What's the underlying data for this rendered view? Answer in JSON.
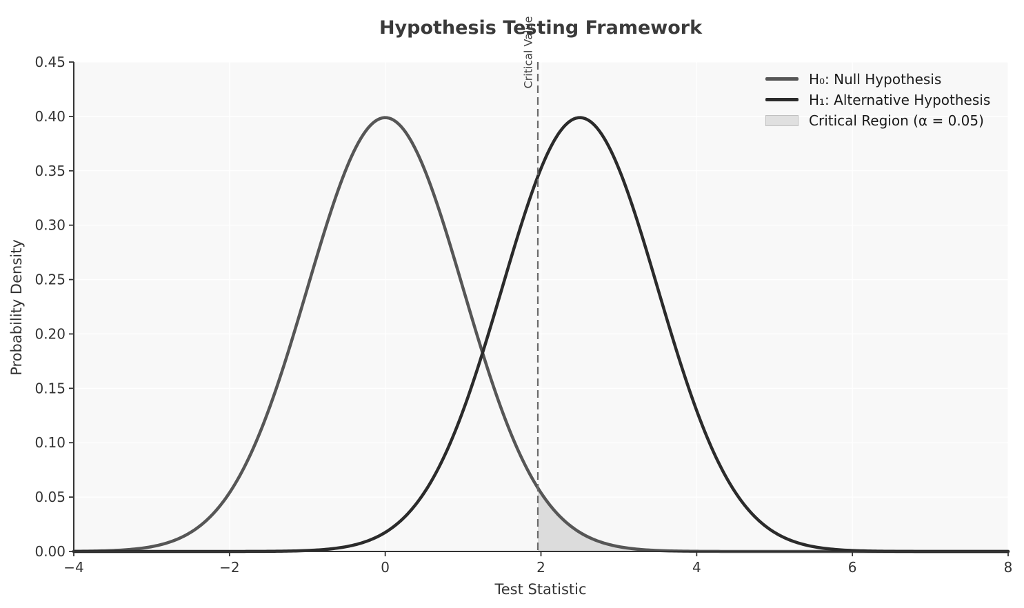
{
  "figure": {
    "title": "Hypothesis Testing Framework"
  },
  "chart_data": {
    "type": "line",
    "title": "Hypothesis Testing Framework",
    "xlabel": "Test Statistic",
    "ylabel": "Probability Density",
    "xlim": [
      -4,
      8
    ],
    "ylim": [
      0,
      0.45
    ],
    "grid": true,
    "legend_position": "upper right",
    "xticks": {
      "values": [
        -4,
        -2,
        0,
        2,
        4,
        6,
        8
      ],
      "labels": [
        "−4",
        "−2",
        "0",
        "2",
        "4",
        "6",
        "8"
      ]
    },
    "yticks": {
      "values": [
        0,
        0.05,
        0.1,
        0.15,
        0.2,
        0.25,
        0.3,
        0.35,
        0.4,
        0.45
      ],
      "labels": [
        "0.00",
        "0.05",
        "0.10",
        "0.15",
        "0.20",
        "0.25",
        "0.30",
        "0.35",
        "0.40",
        "0.45"
      ]
    },
    "series": [
      {
        "name": "H₀: Null Hypothesis",
        "curve": "normal_pdf",
        "mean": 0,
        "sigma": 1,
        "peak": 0.3989,
        "color": "#565656",
        "linewidth": 4.5
      },
      {
        "name": "H₁: Alternative Hypothesis",
        "curve": "normal_pdf",
        "mean": 2.5,
        "sigma": 1,
        "peak": 0.3989,
        "color": "#2b2b2b",
        "linewidth": 4.5
      }
    ],
    "critical_value": {
      "x": 1.96,
      "label": "Critical Value",
      "color": "#6a6a6a"
    },
    "critical_region": {
      "label": "Critical Region (α = 0.05)",
      "alpha": 0.05,
      "from_x": 1.96,
      "to_x": 8,
      "under_series": 0,
      "fill": "#dcdcdc",
      "legend_fill": "#e0e0e0"
    },
    "colors": {
      "plot_background": "#f8f8f8",
      "grid": "#ffffff",
      "axis": "#333333",
      "tick_text": "#333333",
      "title_text": "#3a3a3a"
    }
  }
}
